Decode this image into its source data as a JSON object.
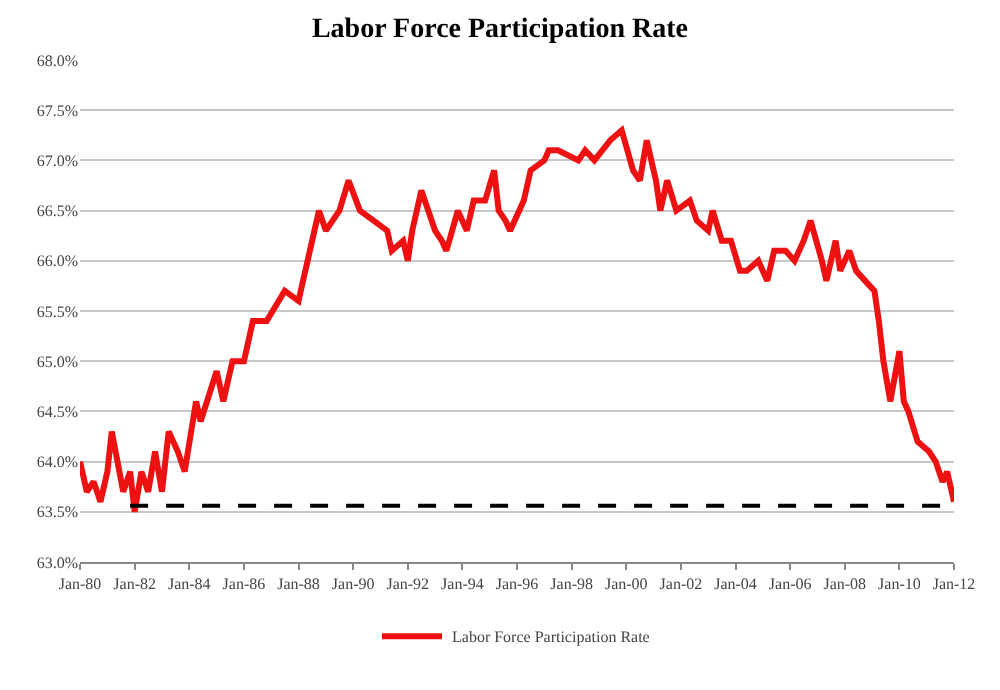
{
  "chart_data": {
    "type": "line",
    "title": "Labor Force Participation Rate",
    "xlim": [
      "1980-01",
      "2012-01"
    ],
    "xticks": [
      {
        "value": "1980-01",
        "label": "Jan-80"
      },
      {
        "value": "1982-01",
        "label": "Jan-82"
      },
      {
        "value": "1984-01",
        "label": "Jan-84"
      },
      {
        "value": "1986-01",
        "label": "Jan-86"
      },
      {
        "value": "1988-01",
        "label": "Jan-88"
      },
      {
        "value": "1990-01",
        "label": "Jan-90"
      },
      {
        "value": "1992-01",
        "label": "Jan-92"
      },
      {
        "value": "1994-01",
        "label": "Jan-94"
      },
      {
        "value": "1996-01",
        "label": "Jan-96"
      },
      {
        "value": "1998-01",
        "label": "Jan-98"
      },
      {
        "value": "2000-01",
        "label": "Jan-00"
      },
      {
        "value": "2002-01",
        "label": "Jan-02"
      },
      {
        "value": "2004-01",
        "label": "Jan-04"
      },
      {
        "value": "2006-01",
        "label": "Jan-06"
      },
      {
        "value": "2008-01",
        "label": "Jan-08"
      },
      {
        "value": "2010-01",
        "label": "Jan-10"
      },
      {
        "value": "2012-01",
        "label": "Jan-12"
      }
    ],
    "ylim": [
      63.0,
      68.0
    ],
    "yticks": [
      {
        "value": 63.0,
        "label": "63.0%"
      },
      {
        "value": 63.5,
        "label": "63.5%"
      },
      {
        "value": 64.0,
        "label": "64.0%"
      },
      {
        "value": 64.5,
        "label": "64.5%"
      },
      {
        "value": 65.0,
        "label": "65.0%"
      },
      {
        "value": 65.5,
        "label": "65.5%"
      },
      {
        "value": 66.0,
        "label": "66.0%"
      },
      {
        "value": 66.5,
        "label": "66.5%"
      },
      {
        "value": 67.0,
        "label": "67.0%"
      },
      {
        "value": 67.5,
        "label": "67.5%"
      },
      {
        "value": 68.0,
        "label": "68.0%"
      }
    ],
    "grid": "y",
    "legend": "bottom",
    "series": [
      {
        "name": "Labor Force Participation Rate",
        "color": "#ee1111",
        "line_style": "solid",
        "x": [
          "1980-01",
          "1980-04",
          "1980-07",
          "1980-10",
          "1981-01",
          "1981-03",
          "1981-08",
          "1981-11",
          "1982-01",
          "1982-04",
          "1982-07",
          "1982-10",
          "1983-01",
          "1983-04",
          "1983-08",
          "1983-11",
          "1984-04",
          "1984-06",
          "1985-01",
          "1985-04",
          "1985-08",
          "1986-01",
          "1986-05",
          "1986-11",
          "1987-07",
          "1988-01",
          "1988-06",
          "1988-10",
          "1989-01",
          "1989-07",
          "1989-11",
          "1990-04",
          "1990-10",
          "1991-04",
          "1991-06",
          "1991-11",
          "1992-01",
          "1992-03",
          "1992-07",
          "1993-01",
          "1993-04",
          "1993-06",
          "1993-11",
          "1994-03",
          "1994-06",
          "1994-11",
          "1995-03",
          "1995-05",
          "1995-08",
          "1995-10",
          "1996-04",
          "1996-07",
          "1997-01",
          "1997-03",
          "1997-07",
          "1998-04",
          "1998-07",
          "1998-11",
          "1999-06",
          "1999-11",
          "2000-04",
          "2000-07",
          "2000-10",
          "2001-02",
          "2001-04",
          "2001-07",
          "2001-11",
          "2002-05",
          "2002-08",
          "2003-01",
          "2003-03",
          "2003-07",
          "2003-11",
          "2004-03",
          "2004-06",
          "2004-11",
          "2005-03",
          "2005-06",
          "2005-11",
          "2006-03",
          "2006-07",
          "2006-10",
          "2007-03",
          "2007-05",
          "2007-09",
          "2007-11",
          "2008-03",
          "2008-06",
          "2008-10",
          "2009-02",
          "2009-04",
          "2009-06",
          "2009-09",
          "2010-01",
          "2010-03",
          "2010-05",
          "2010-09",
          "2011-02",
          "2011-05",
          "2011-08",
          "2011-10",
          "2012-01"
        ],
        "values": [
          64.0,
          63.7,
          63.8,
          63.6,
          63.9,
          64.3,
          63.7,
          63.9,
          63.5,
          63.9,
          63.7,
          64.1,
          63.7,
          64.3,
          64.1,
          63.9,
          64.6,
          64.4,
          64.9,
          64.6,
          65.0,
          65.0,
          65.4,
          65.4,
          65.7,
          65.6,
          66.1,
          66.5,
          66.3,
          66.5,
          66.8,
          66.5,
          66.4,
          66.3,
          66.1,
          66.2,
          66.0,
          66.3,
          66.7,
          66.3,
          66.2,
          66.1,
          66.5,
          66.3,
          66.6,
          66.6,
          66.9,
          66.5,
          66.4,
          66.3,
          66.6,
          66.9,
          67.0,
          67.1,
          67.1,
          67.0,
          67.1,
          67.0,
          67.2,
          67.3,
          66.9,
          66.8,
          67.2,
          66.8,
          66.5,
          66.8,
          66.5,
          66.6,
          66.4,
          66.3,
          66.5,
          66.2,
          66.2,
          65.9,
          65.9,
          66.0,
          65.8,
          66.1,
          66.1,
          66.0,
          66.2,
          66.4,
          66.0,
          65.8,
          66.2,
          65.9,
          66.1,
          65.9,
          65.8,
          65.7,
          65.4,
          65.0,
          64.6,
          65.1,
          64.6,
          64.5,
          64.2,
          64.1,
          64.0,
          63.8,
          63.9,
          63.6
        ]
      },
      {
        "color": "#000000",
        "line_style": "dashed",
        "x": [
          "1981-11",
          "2012-01"
        ],
        "values": [
          63.56,
          63.56
        ]
      }
    ]
  }
}
